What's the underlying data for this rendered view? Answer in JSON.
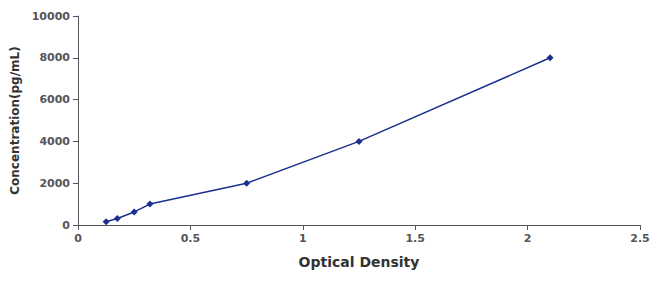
{
  "chart_data": {
    "type": "line",
    "xlabel": "Optical Density",
    "ylabel": "Concentration(pg/mL)",
    "x": [
      0.125,
      0.175,
      0.25,
      0.32,
      0.75,
      1.25,
      2.1
    ],
    "values": [
      156.25,
      312.5,
      625,
      1000,
      2000,
      4000,
      8000
    ],
    "color": "#1c2f8c",
    "marker": "diamond",
    "line_style": "solid",
    "xlim": [
      0,
      2.5
    ],
    "ylim": [
      0,
      10000
    ],
    "xticks": [
      0,
      0.5,
      1,
      1.5,
      2,
      2.5
    ],
    "yticks": [
      0,
      2000,
      4000,
      6000,
      8000,
      10000
    ],
    "grid": false
  }
}
